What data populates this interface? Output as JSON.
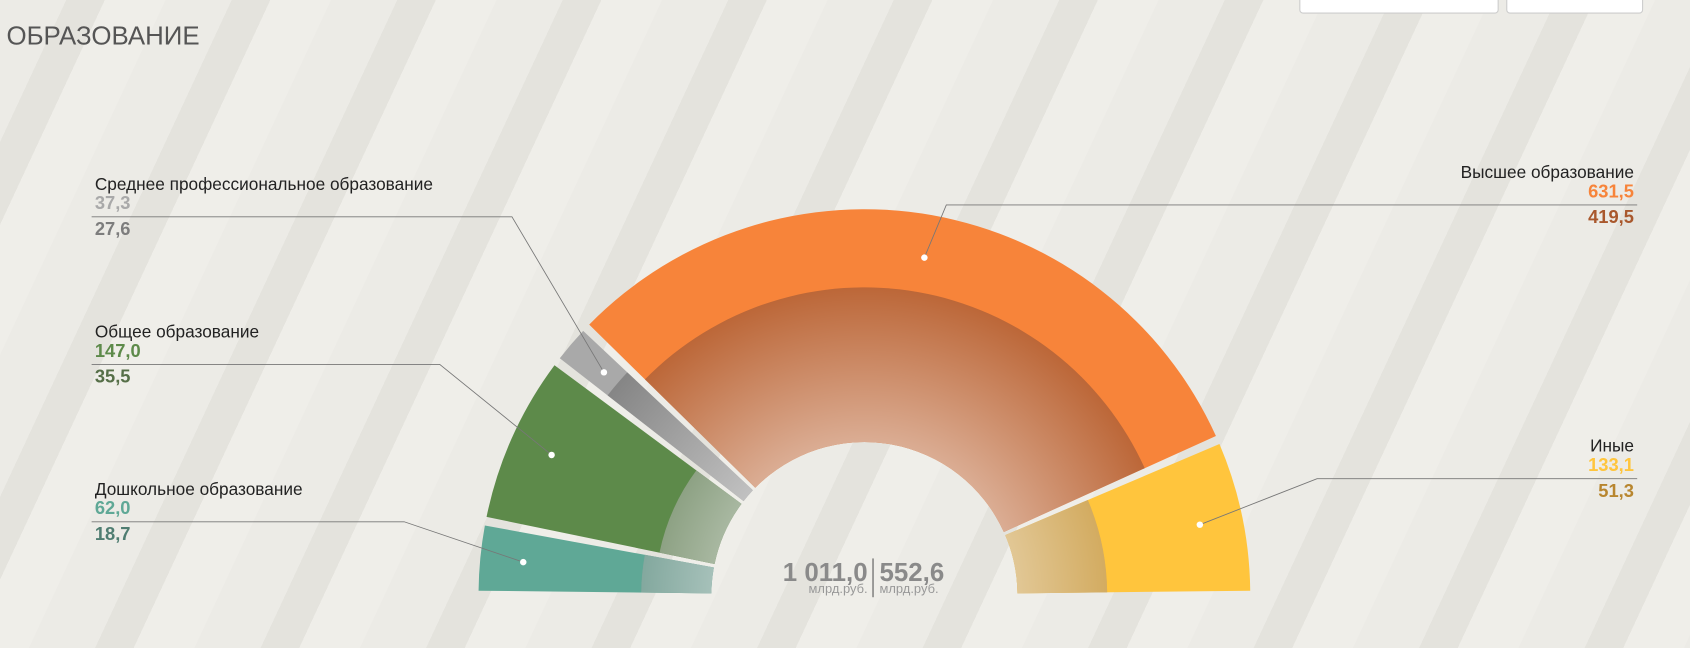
{
  "chart_data": {
    "type": "semi-donut",
    "title": "ОБРАЗОВАНИЕ",
    "categories": [
      "Дошкольное образование",
      "Общее образование",
      "Среднее профессиональное образование",
      "Высшее образование",
      "Иные"
    ],
    "series": [
      {
        "colors": [
          "#5fa896",
          "#5d8a4a",
          "#a9a9a9",
          "#f7843a",
          "#ffc53d"
        ],
        "values": [
          62.0,
          147.0,
          37.3,
          631.5,
          133.1
        ],
        "value_labels": [
          "62,0",
          "147,0",
          "37,3",
          "631,5",
          "133,1"
        ]
      },
      {
        "colors": [
          "#4f7d71",
          "#566f48",
          "#7d7d7d",
          "#a9582d",
          "#b8862f"
        ],
        "values": [
          18.7,
          35.5,
          27.6,
          419.5,
          51.3
        ],
        "value_labels": [
          "18,7",
          "35,5",
          "27,6",
          "419,5",
          "51,3"
        ]
      }
    ],
    "totals": {
      "values": [
        1011.0,
        552.6
      ],
      "value_labels": [
        "1 011,0",
        "552,6"
      ],
      "unit": "млрд.руб."
    }
  }
}
